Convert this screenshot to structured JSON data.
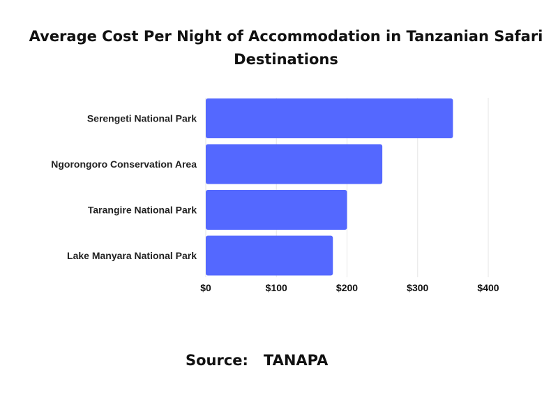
{
  "chart_data": {
    "type": "bar",
    "orientation": "horizontal",
    "title": "Average Cost Per Night of Accommodation in Tanzanian Safari Destinations",
    "categories": [
      "Serengeti National Park",
      "Ngorongoro Conservation Area",
      "Tarangire National Park",
      "Lake Manyara National Park"
    ],
    "values": [
      350,
      250,
      200,
      180
    ],
    "xlim": [
      0,
      400
    ],
    "xticks": [
      0,
      100,
      200,
      300,
      400
    ],
    "xtick_labels": [
      "$0",
      "$100",
      "$200",
      "$300",
      "$400"
    ],
    "xlabel": "",
    "ylabel": "",
    "grid": "vertical",
    "bar_color": "#5468FF",
    "grid_color": "#E6E6E6"
  },
  "source": {
    "label": "Source:",
    "value": "TANAPA"
  }
}
